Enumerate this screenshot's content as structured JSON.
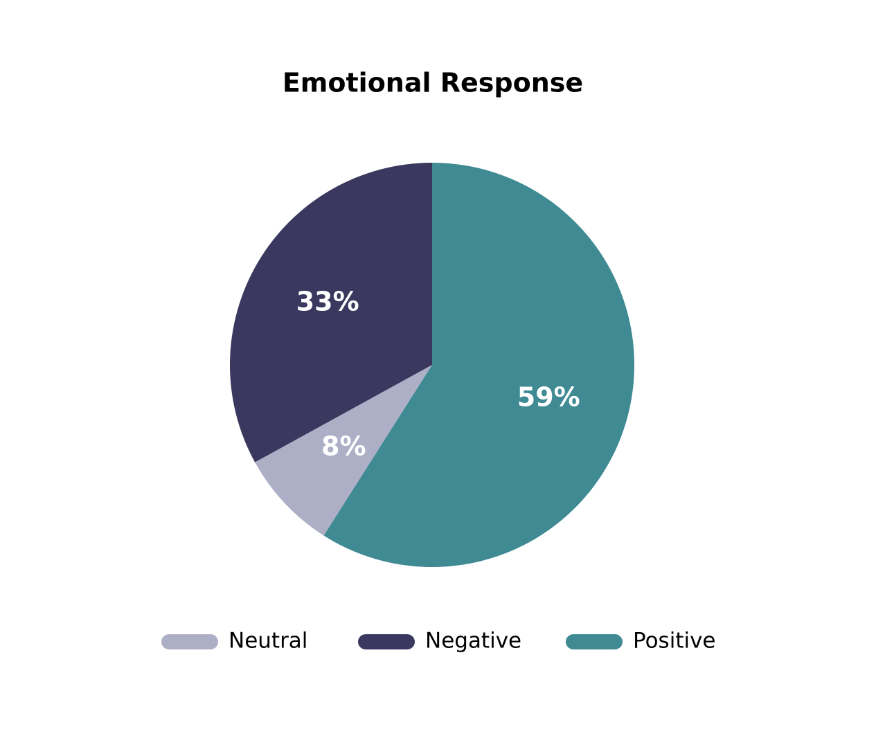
{
  "chart_data": {
    "type": "pie",
    "title": "Emotional Response",
    "categories": [
      "Neutral",
      "Negative",
      "Positive"
    ],
    "values": [
      8,
      33,
      59
    ],
    "value_labels": [
      "8%",
      "33%",
      "59%"
    ],
    "colors": [
      "#adafc7",
      "#3a385e",
      "#3f8a93"
    ],
    "legend": "bottom"
  }
}
